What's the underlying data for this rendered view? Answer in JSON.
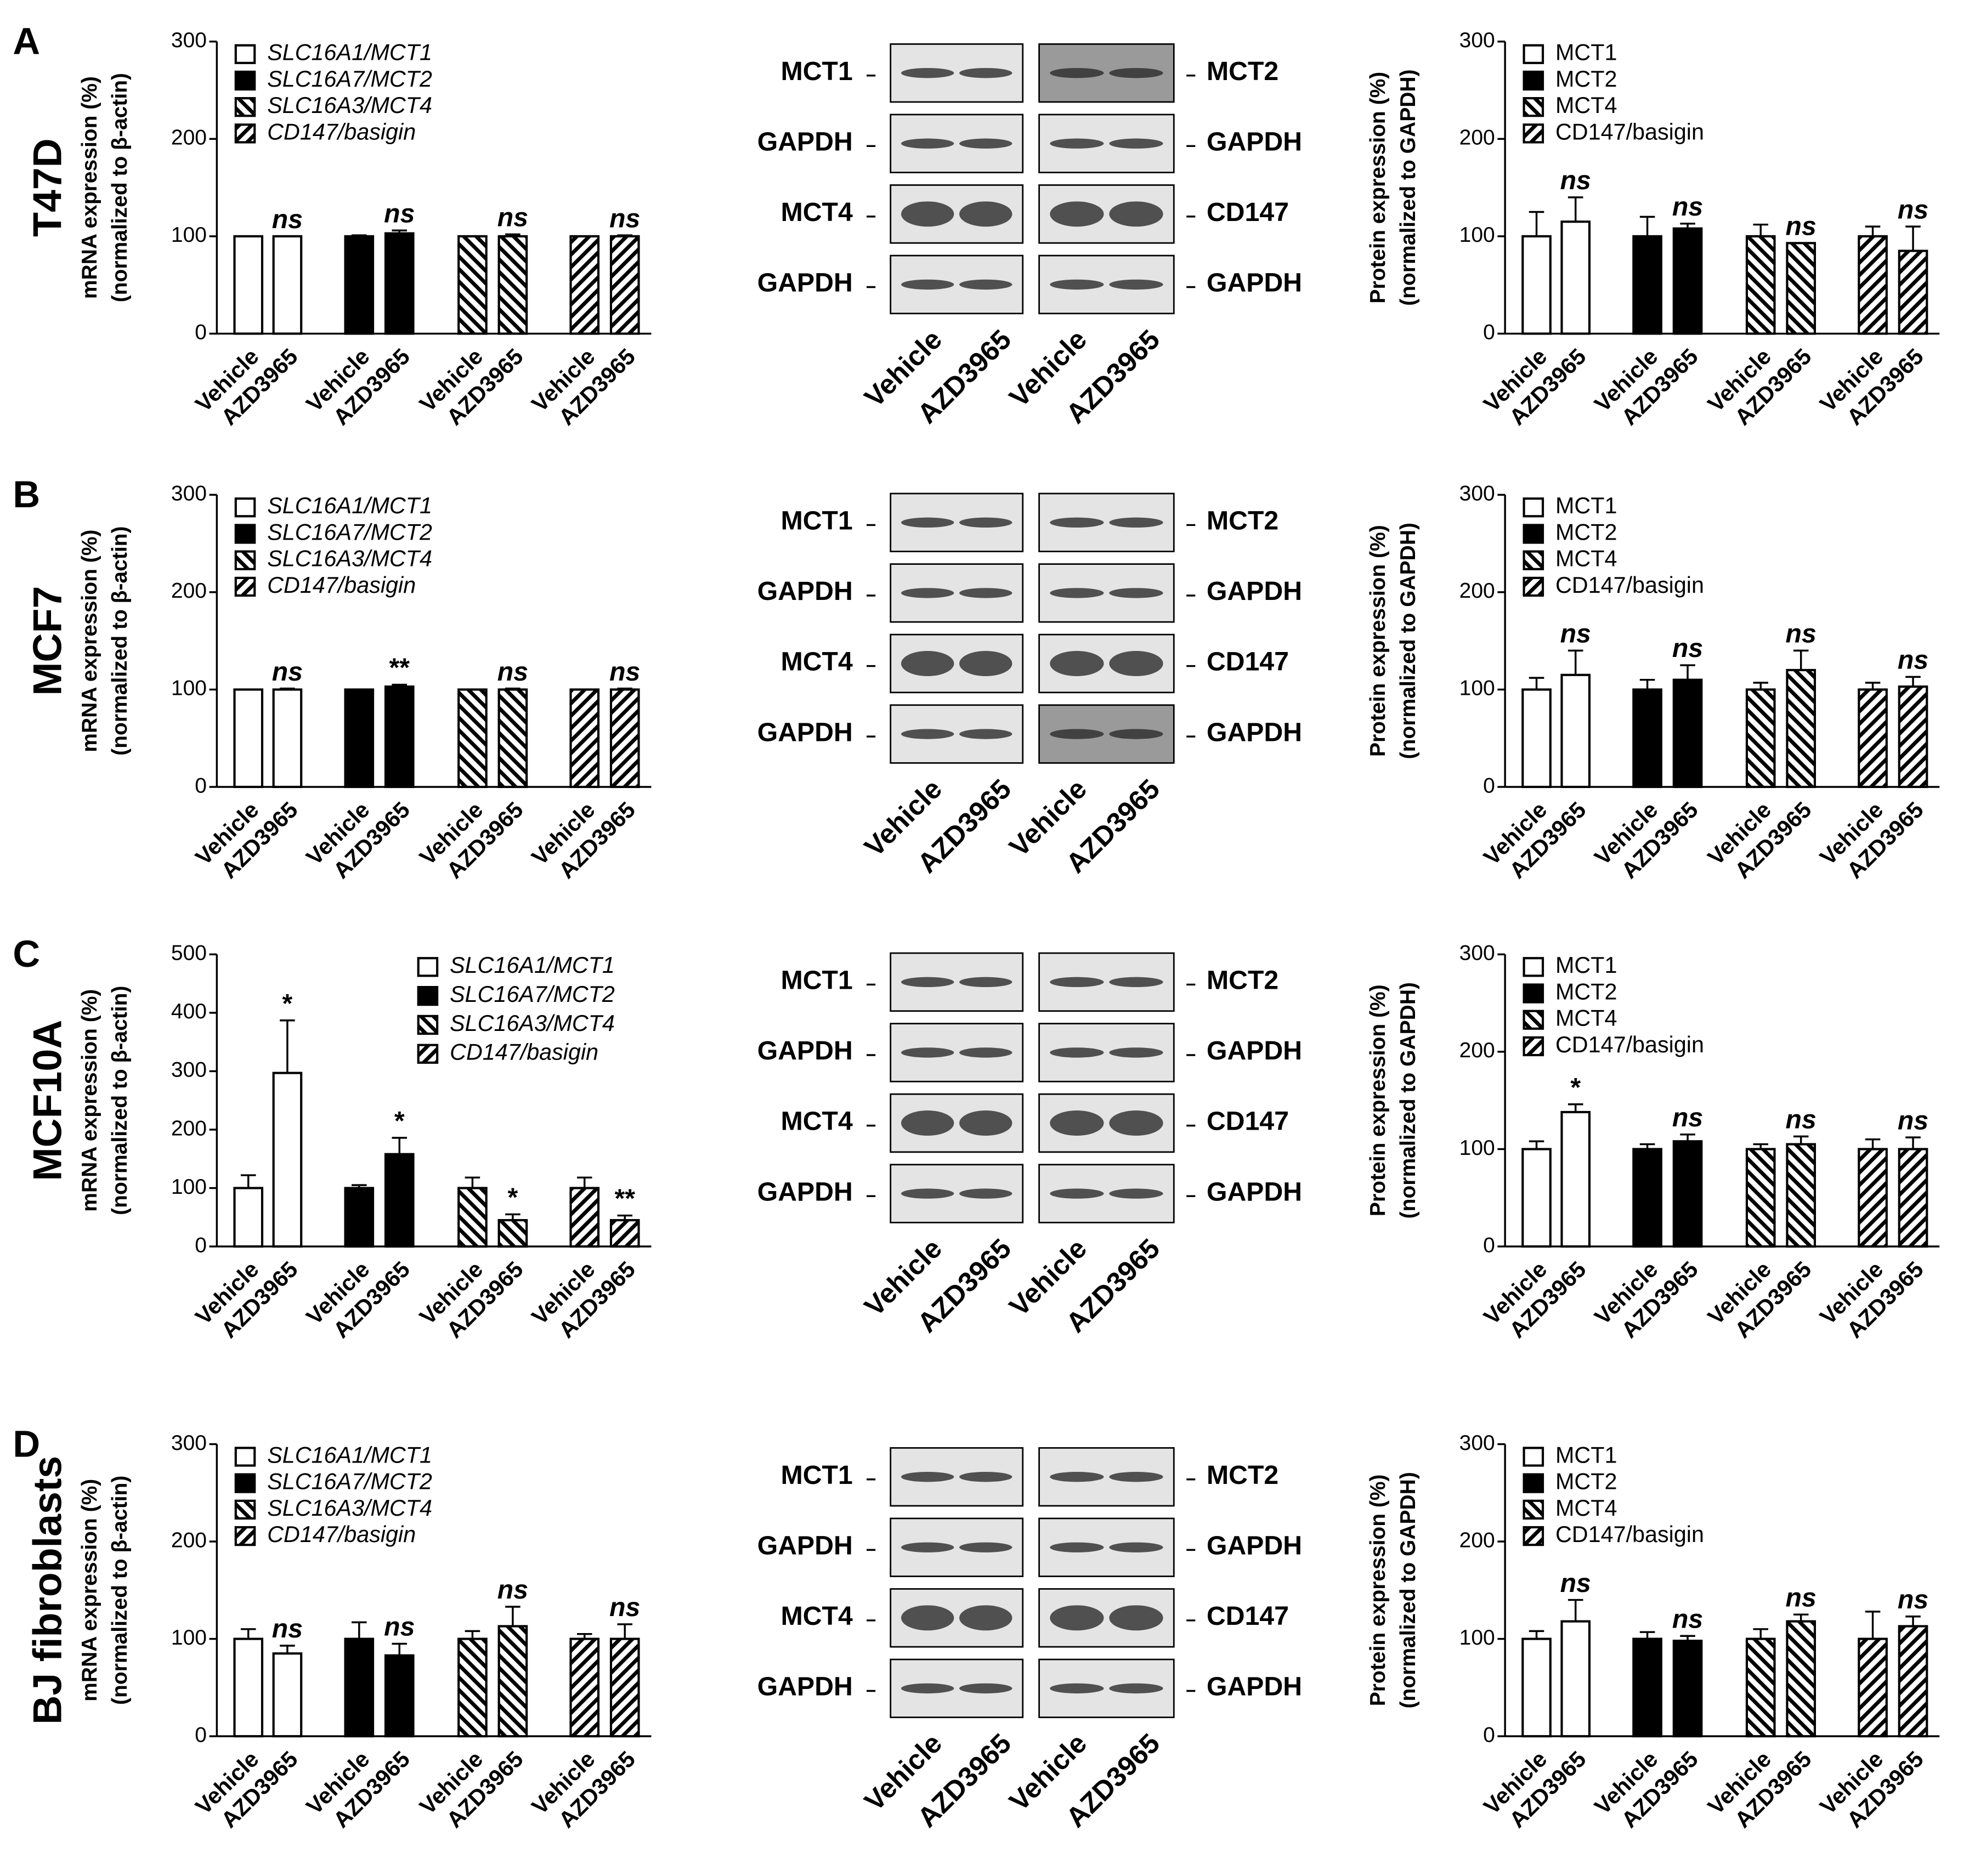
{
  "panels": [
    {
      "letter": "A",
      "cell_line": "T47D",
      "blot": {
        "left_labels": [
          "MCT1",
          "GAPDH",
          "MCT4",
          "GAPDH"
        ],
        "right_labels": [
          "MCT2",
          "GAPDH",
          "CD147",
          "GAPDH"
        ],
        "lanes": [
          "Vehicle",
          "AZD3965",
          "Vehicle",
          "AZD3965"
        ]
      }
    },
    {
      "letter": "B",
      "cell_line": "MCF7",
      "blot": {
        "left_labels": [
          "MCT1",
          "GAPDH",
          "MCT4",
          "GAPDH"
        ],
        "right_labels": [
          "MCT2",
          "GAPDH",
          "CD147",
          "GAPDH"
        ],
        "lanes": [
          "Vehicle",
          "AZD3965",
          "Vehicle",
          "AZD3965"
        ]
      }
    },
    {
      "letter": "C",
      "cell_line": "MCF10A",
      "blot": {
        "left_labels": [
          "MCT1",
          "GAPDH",
          "MCT4",
          "GAPDH"
        ],
        "right_labels": [
          "MCT2",
          "GAPDH",
          "CD147",
          "GAPDH"
        ],
        "lanes": [
          "Vehicle",
          "AZD3965",
          "Vehicle",
          "AZD3965"
        ]
      }
    },
    {
      "letter": "D",
      "cell_line": "BJ fibroblasts",
      "blot": {
        "left_labels": [
          "MCT1",
          "GAPDH",
          "MCT4",
          "GAPDH"
        ],
        "right_labels": [
          "MCT2",
          "GAPDH",
          "CD147",
          "GAPDH"
        ],
        "lanes": [
          "Vehicle",
          "AZD3965",
          "Vehicle",
          "AZD3965"
        ]
      }
    }
  ],
  "chart_data": [
    {
      "type": "bar",
      "ylabel": [
        "mRNA expression (%)",
        "(normalized to β-actin)"
      ],
      "ylim": [
        0,
        300
      ],
      "yticks": [
        0,
        100,
        200,
        300
      ],
      "legend": "upper left",
      "legend_style": "italic",
      "groups": [
        {
          "name": "SLC16A1/MCT1",
          "pattern": "open",
          "categories": [
            "Vehicle",
            "AZD3965"
          ],
          "values": [
            100,
            100
          ],
          "errors": [
            0,
            0
          ],
          "annotation": "ns"
        },
        {
          "name": "SLC16A7/MCT2",
          "pattern": "solid",
          "categories": [
            "Vehicle",
            "AZD3965"
          ],
          "values": [
            100,
            103
          ],
          "errors": [
            1,
            3
          ],
          "annotation": "ns"
        },
        {
          "name": "SLC16A3/MCT4",
          "pattern": "back-hatch",
          "categories": [
            "Vehicle",
            "AZD3965"
          ],
          "values": [
            100,
            100
          ],
          "errors": [
            0,
            2
          ],
          "annotation": "ns"
        },
        {
          "name": "CD147/basigin",
          "pattern": "forward-hatch",
          "categories": [
            "Vehicle",
            "AZD3965"
          ],
          "values": [
            100,
            100
          ],
          "errors": [
            0,
            1
          ],
          "annotation": "ns"
        }
      ]
    },
    {
      "type": "bar",
      "ylabel": [
        "Protein expression (%)",
        "(normalized to GAPDH)"
      ],
      "ylim": [
        0,
        300
      ],
      "yticks": [
        0,
        100,
        200,
        300
      ],
      "legend": "upper left",
      "legend_style": "normal",
      "groups": [
        {
          "name": "MCT1",
          "pattern": "open",
          "categories": [
            "Vehicle",
            "AZD3965"
          ],
          "values": [
            100,
            115
          ],
          "errors": [
            25,
            25
          ],
          "annotation": "ns"
        },
        {
          "name": "MCT2",
          "pattern": "solid",
          "categories": [
            "Vehicle",
            "AZD3965"
          ],
          "values": [
            100,
            108
          ],
          "errors": [
            20,
            5
          ],
          "annotation": "ns"
        },
        {
          "name": "MCT4",
          "pattern": "back-hatch",
          "categories": [
            "Vehicle",
            "AZD3965"
          ],
          "values": [
            100,
            93
          ],
          "errors": [
            12,
            0
          ],
          "annotation": "ns"
        },
        {
          "name": "CD147/basigin",
          "pattern": "forward-hatch",
          "categories": [
            "Vehicle",
            "AZD3965"
          ],
          "values": [
            100,
            85
          ],
          "errors": [
            10,
            25
          ],
          "annotation": "ns"
        }
      ]
    },
    {
      "type": "bar",
      "ylabel": [
        "mRNA expression (%)",
        "(normalized to β-actin)"
      ],
      "ylim": [
        0,
        300
      ],
      "yticks": [
        0,
        100,
        200,
        300
      ],
      "legend": "upper left",
      "legend_style": "italic",
      "groups": [
        {
          "name": "SLC16A1/MCT1",
          "pattern": "open",
          "categories": [
            "Vehicle",
            "AZD3965"
          ],
          "values": [
            100,
            100
          ],
          "errors": [
            0,
            1
          ],
          "annotation": "ns"
        },
        {
          "name": "SLC16A7/MCT2",
          "pattern": "solid",
          "categories": [
            "Vehicle",
            "AZD3965"
          ],
          "values": [
            100,
            103
          ],
          "errors": [
            0,
            2
          ],
          "annotation": "**"
        },
        {
          "name": "SLC16A3/MCT4",
          "pattern": "back-hatch",
          "categories": [
            "Vehicle",
            "AZD3965"
          ],
          "values": [
            100,
            100
          ],
          "errors": [
            0,
            1
          ],
          "annotation": "ns"
        },
        {
          "name": "CD147/basigin",
          "pattern": "forward-hatch",
          "categories": [
            "Vehicle",
            "AZD3965"
          ],
          "values": [
            100,
            100
          ],
          "errors": [
            0,
            1
          ],
          "annotation": "ns"
        }
      ]
    },
    {
      "type": "bar",
      "ylabel": [
        "Protein expression (%)",
        "(normalized to GAPDH)"
      ],
      "ylim": [
        0,
        300
      ],
      "yticks": [
        0,
        100,
        200,
        300
      ],
      "legend": "upper left",
      "legend_style": "normal",
      "groups": [
        {
          "name": "MCT1",
          "pattern": "open",
          "categories": [
            "Vehicle",
            "AZD3965"
          ],
          "values": [
            100,
            115
          ],
          "errors": [
            12,
            25
          ],
          "annotation": "ns"
        },
        {
          "name": "MCT2",
          "pattern": "solid",
          "categories": [
            "Vehicle",
            "AZD3965"
          ],
          "values": [
            100,
            110
          ],
          "errors": [
            10,
            15
          ],
          "annotation": "ns"
        },
        {
          "name": "MCT4",
          "pattern": "back-hatch",
          "categories": [
            "Vehicle",
            "AZD3965"
          ],
          "values": [
            100,
            120
          ],
          "errors": [
            7,
            20
          ],
          "annotation": "ns"
        },
        {
          "name": "CD147/basigin",
          "pattern": "forward-hatch",
          "categories": [
            "Vehicle",
            "AZD3965"
          ],
          "values": [
            100,
            103
          ],
          "errors": [
            7,
            10
          ],
          "annotation": "ns"
        }
      ]
    },
    {
      "type": "bar",
      "ylabel": [
        "mRNA expression (%)",
        "(normalized to β-actin)"
      ],
      "ylim": [
        0,
        500
      ],
      "yticks": [
        0,
        100,
        200,
        300,
        400,
        500
      ],
      "legend": "upper right",
      "legend_style": "italic",
      "groups": [
        {
          "name": "SLC16A1/MCT1",
          "pattern": "open",
          "categories": [
            "Vehicle",
            "AZD3965"
          ],
          "values": [
            100,
            297
          ],
          "errors": [
            22,
            90
          ],
          "annotation": "*"
        },
        {
          "name": "SLC16A7/MCT2",
          "pattern": "solid",
          "categories": [
            "Vehicle",
            "AZD3965"
          ],
          "values": [
            100,
            158
          ],
          "errors": [
            5,
            28
          ],
          "annotation": "*"
        },
        {
          "name": "SLC16A3/MCT4",
          "pattern": "back-hatch",
          "categories": [
            "Vehicle",
            "AZD3965"
          ],
          "values": [
            100,
            45
          ],
          "errors": [
            18,
            10
          ],
          "annotation": "*"
        },
        {
          "name": "CD147/basigin",
          "pattern": "forward-hatch",
          "categories": [
            "Vehicle",
            "AZD3965"
          ],
          "values": [
            100,
            45
          ],
          "errors": [
            18,
            8
          ],
          "annotation": "**"
        }
      ]
    },
    {
      "type": "bar",
      "ylabel": [
        "Protein expression (%)",
        "(normalized to GAPDH)"
      ],
      "ylim": [
        0,
        300
      ],
      "yticks": [
        0,
        100,
        200,
        300
      ],
      "legend": "upper left",
      "legend_style": "normal",
      "groups": [
        {
          "name": "MCT1",
          "pattern": "open",
          "categories": [
            "Vehicle",
            "AZD3965"
          ],
          "values": [
            100,
            138
          ],
          "errors": [
            8,
            8
          ],
          "annotation": "*"
        },
        {
          "name": "MCT2",
          "pattern": "solid",
          "categories": [
            "Vehicle",
            "AZD3965"
          ],
          "values": [
            100,
            108
          ],
          "errors": [
            5,
            7
          ],
          "annotation": "ns"
        },
        {
          "name": "MCT4",
          "pattern": "back-hatch",
          "categories": [
            "Vehicle",
            "AZD3965"
          ],
          "values": [
            100,
            105
          ],
          "errors": [
            5,
            8
          ],
          "annotation": "ns"
        },
        {
          "name": "CD147/basigin",
          "pattern": "forward-hatch",
          "categories": [
            "Vehicle",
            "AZD3965"
          ],
          "values": [
            100,
            100
          ],
          "errors": [
            10,
            12
          ],
          "annotation": "ns"
        }
      ]
    },
    {
      "type": "bar",
      "ylabel": [
        "mRNA expression (%)",
        "(normalized to β-actin)"
      ],
      "ylim": [
        0,
        300
      ],
      "yticks": [
        0,
        100,
        200,
        300
      ],
      "legend": "upper left",
      "legend_style": "italic",
      "groups": [
        {
          "name": "SLC16A1/MCT1",
          "pattern": "open",
          "categories": [
            "Vehicle",
            "AZD3965"
          ],
          "values": [
            100,
            85
          ],
          "errors": [
            10,
            8
          ],
          "annotation": "ns"
        },
        {
          "name": "SLC16A7/MCT2",
          "pattern": "solid",
          "categories": [
            "Vehicle",
            "AZD3965"
          ],
          "values": [
            100,
            83
          ],
          "errors": [
            17,
            12
          ],
          "annotation": "ns"
        },
        {
          "name": "SLC16A3/MCT4",
          "pattern": "back-hatch",
          "categories": [
            "Vehicle",
            "AZD3965"
          ],
          "values": [
            100,
            113
          ],
          "errors": [
            8,
            20
          ],
          "annotation": "ns"
        },
        {
          "name": "CD147/basigin",
          "pattern": "forward-hatch",
          "categories": [
            "Vehicle",
            "AZD3965"
          ],
          "values": [
            100,
            100
          ],
          "errors": [
            5,
            15
          ],
          "annotation": "ns"
        }
      ]
    },
    {
      "type": "bar",
      "ylabel": [
        "Protein expression (%)",
        "(normalized to GAPDH)"
      ],
      "ylim": [
        0,
        300
      ],
      "yticks": [
        0,
        100,
        200,
        300
      ],
      "legend": "upper left",
      "legend_style": "normal",
      "groups": [
        {
          "name": "MCT1",
          "pattern": "open",
          "categories": [
            "Vehicle",
            "AZD3965"
          ],
          "values": [
            100,
            118
          ],
          "errors": [
            8,
            22
          ],
          "annotation": "ns"
        },
        {
          "name": "MCT2",
          "pattern": "solid",
          "categories": [
            "Vehicle",
            "AZD3965"
          ],
          "values": [
            100,
            98
          ],
          "errors": [
            7,
            5
          ],
          "annotation": "ns"
        },
        {
          "name": "MCT4",
          "pattern": "back-hatch",
          "categories": [
            "Vehicle",
            "AZD3965"
          ],
          "values": [
            100,
            118
          ],
          "errors": [
            10,
            7
          ],
          "annotation": "ns"
        },
        {
          "name": "CD147/basigin",
          "pattern": "forward-hatch",
          "categories": [
            "Vehicle",
            "AZD3965"
          ],
          "values": [
            100,
            113
          ],
          "errors": [
            28,
            10
          ],
          "annotation": "ns"
        }
      ]
    }
  ]
}
